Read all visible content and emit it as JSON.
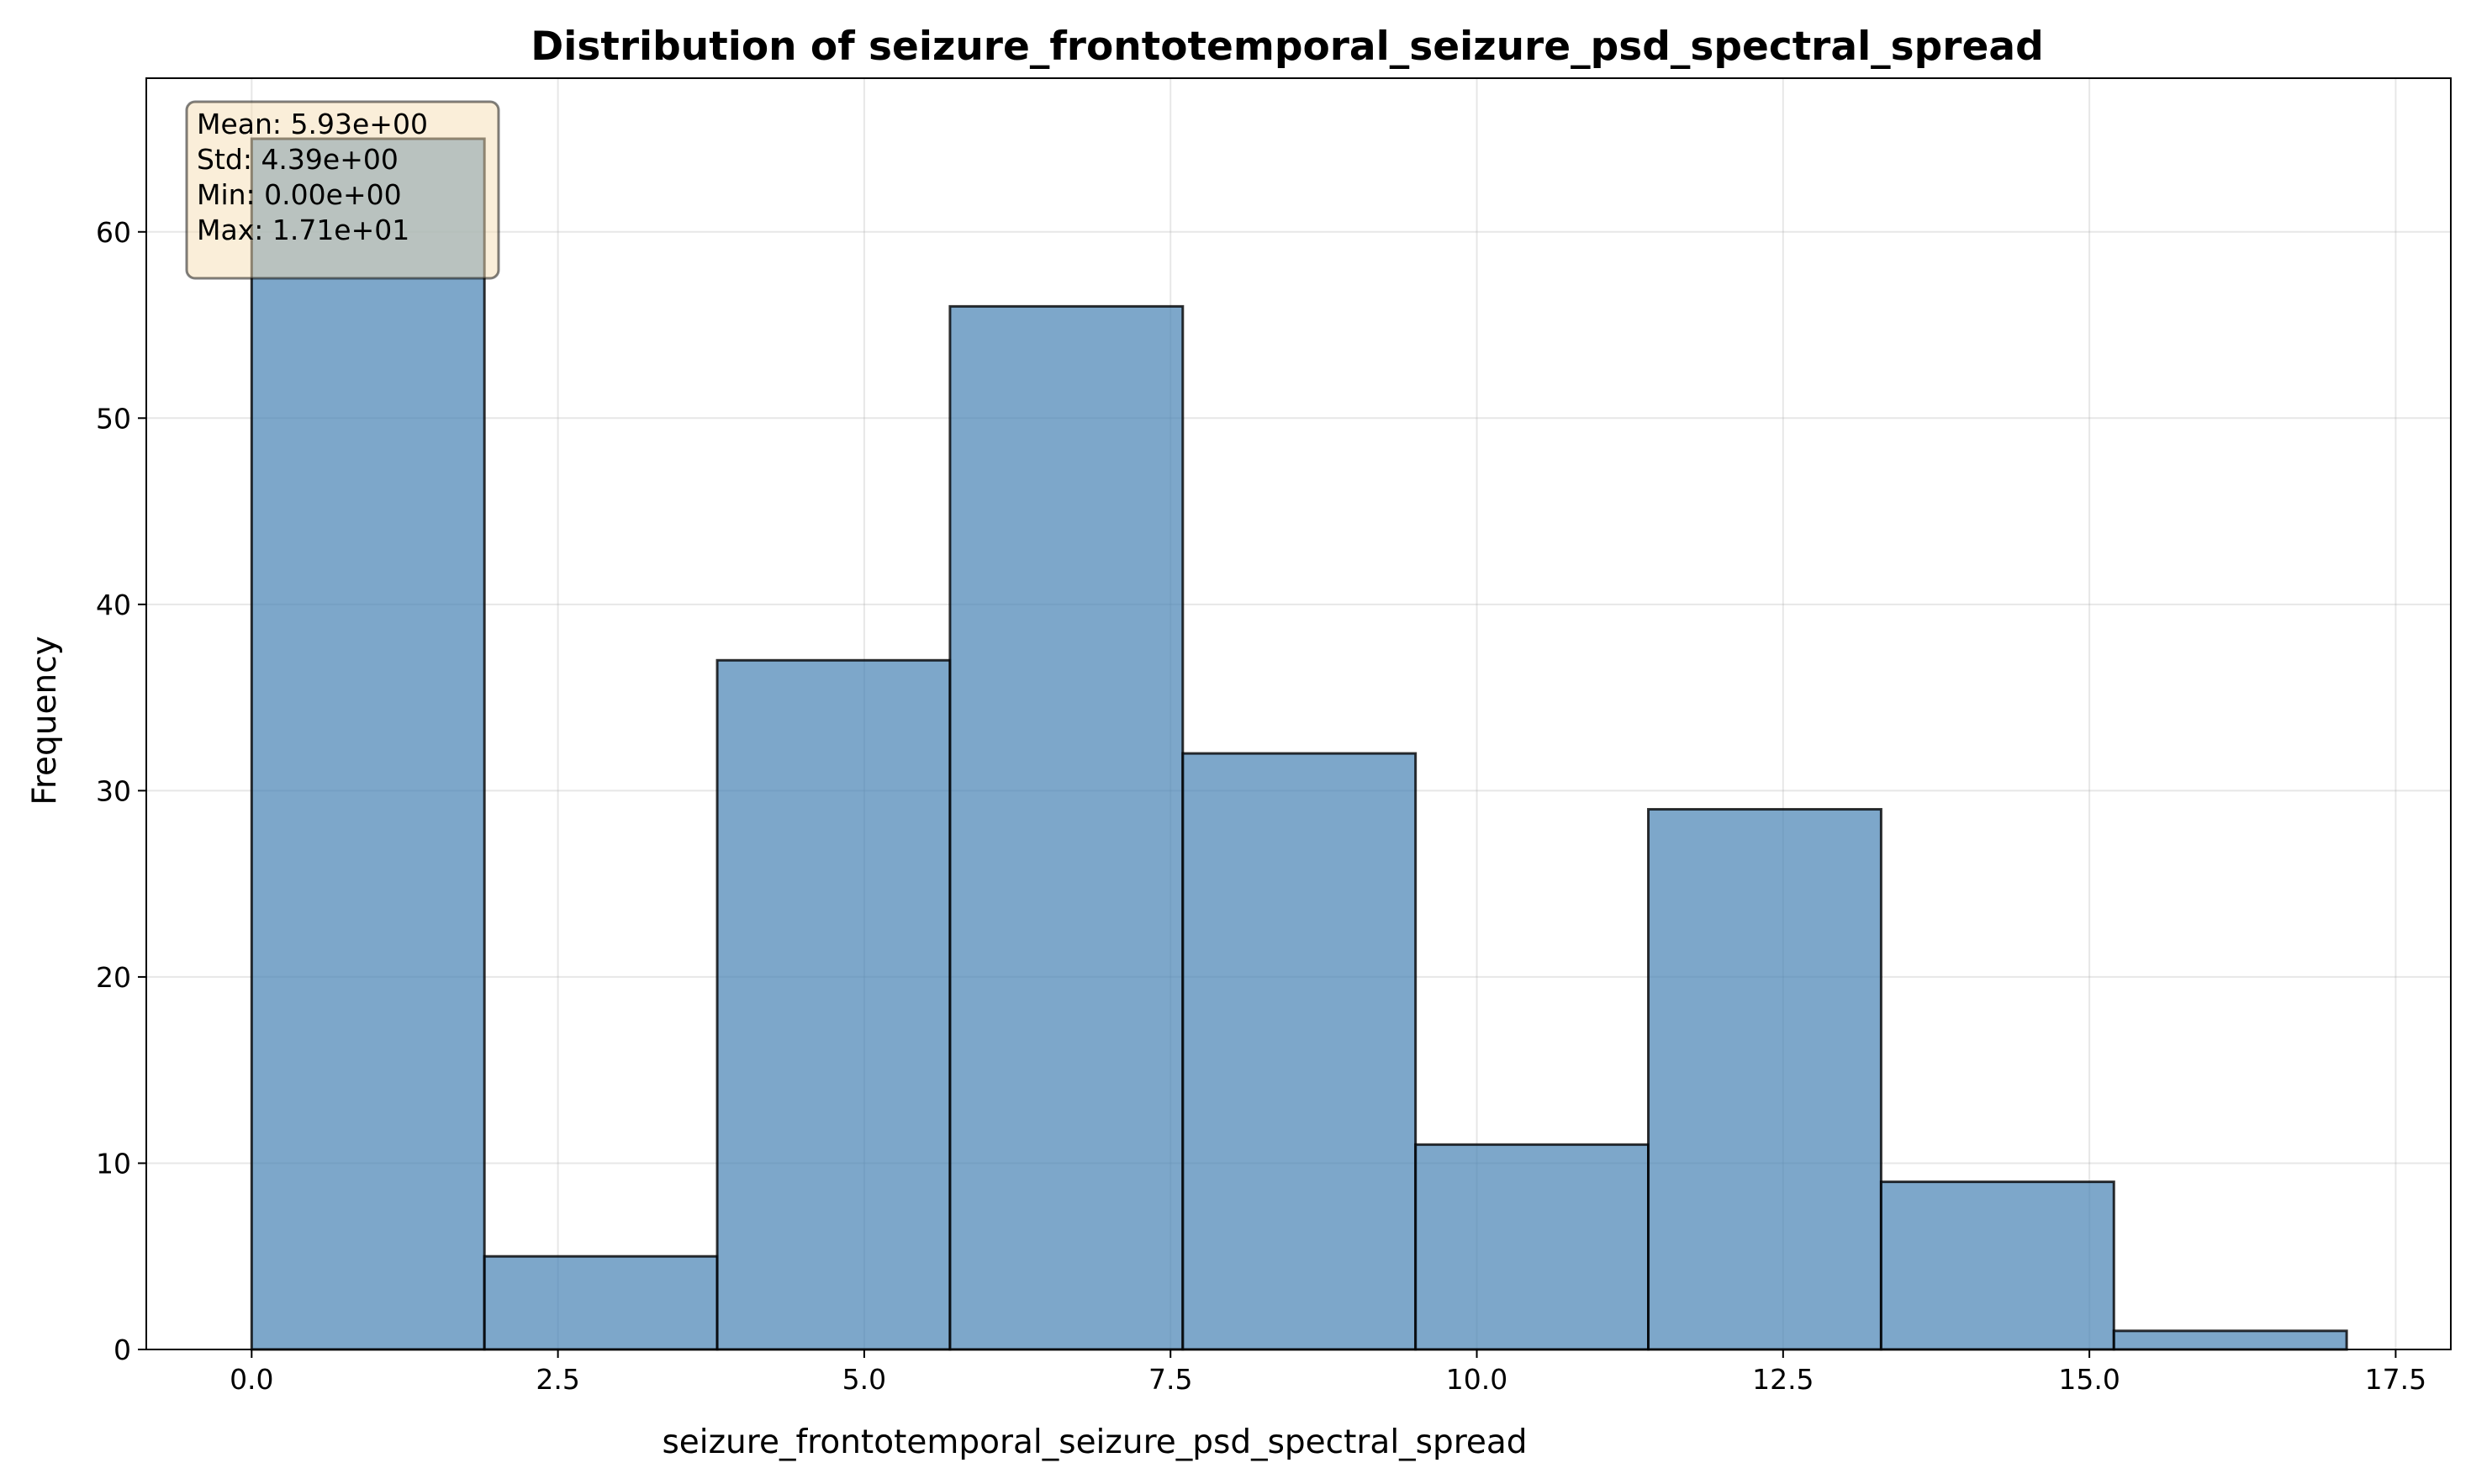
{
  "chart_data": {
    "type": "bar",
    "title": "Distribution of seizure_frontotemporal_seizure_psd_spectral_spread",
    "xlabel": "seizure_frontotemporal_seizure_psd_spectral_spread",
    "ylabel": "Frequency",
    "xlim": [
      -0.86,
      17.95
    ],
    "ylim": [
      0,
      68.25
    ],
    "grid": true,
    "bin_edges": [
      0.0,
      1.9,
      3.8,
      5.7,
      7.6,
      9.5,
      11.4,
      13.3,
      15.2,
      17.1
    ],
    "values": [
      65,
      5,
      37,
      56,
      32,
      11,
      29,
      9,
      1
    ],
    "x_ticks": [
      0.0,
      2.5,
      5.0,
      7.5,
      10.0,
      12.5,
      15.0,
      17.5
    ],
    "x_tick_labels": [
      "0.0",
      "2.5",
      "5.0",
      "7.5",
      "10.0",
      "12.5",
      "15.0",
      "17.5"
    ],
    "y_ticks": [
      0,
      10,
      20,
      30,
      40,
      50,
      60
    ],
    "y_tick_labels": [
      "0",
      "10",
      "20",
      "30",
      "40",
      "50",
      "60"
    ],
    "bar_color": "#4682b4",
    "edge_color": "#000000",
    "stats_box": {
      "placement": "top-left",
      "lines": [
        "Mean: 5.93e+00",
        "Std: 4.39e+00",
        "Min: 0.00e+00",
        "Max: 1.71e+01"
      ],
      "background": "#f5deb3"
    }
  }
}
